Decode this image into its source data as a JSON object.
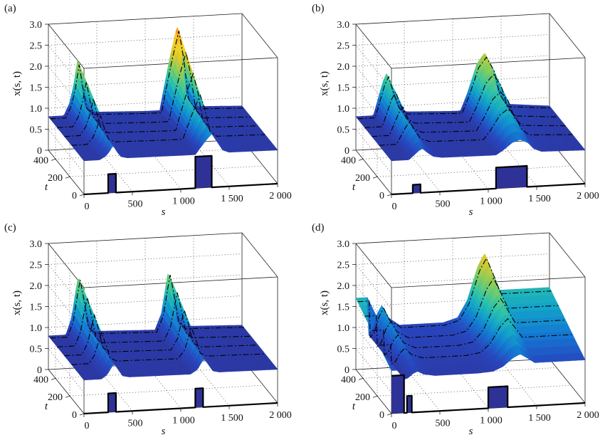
{
  "figure": {
    "panels": [
      {
        "label": "(a)",
        "zlabel": "x(s, t)",
        "xlabel": "s",
        "ylabel": "t",
        "xticks": [
          "0",
          "500",
          "1 000",
          "1 500",
          "2 000"
        ],
        "yticks": [
          "0",
          "200",
          "400"
        ],
        "zticks": [
          "0",
          "0.5",
          "1.0",
          "1.5",
          "2.0",
          "2.5",
          "3.0"
        ]
      },
      {
        "label": "(b)",
        "zlabel": "x(s, t)",
        "xlabel": "s",
        "ylabel": "t",
        "xticks": [
          "0",
          "500",
          "1 000",
          "1 500",
          "2 000"
        ],
        "yticks": [
          "0",
          "200",
          "400"
        ],
        "zticks": [
          "0",
          "0.5",
          "1.0",
          "1.5",
          "2.0",
          "2.5",
          "3.0"
        ]
      },
      {
        "label": "(c)",
        "zlabel": "x(s, t)",
        "xlabel": "s",
        "ylabel": "t",
        "xticks": [
          "0",
          "500",
          "1 000",
          "1 500",
          "2 000"
        ],
        "yticks": [
          "0",
          "200",
          "400"
        ],
        "zticks": [
          "0",
          "0.5",
          "1.0",
          "1.5",
          "2.0",
          "2.5",
          "3.0"
        ]
      },
      {
        "label": "(d)",
        "zlabel": "x(s, t)",
        "xlabel": "s",
        "ylabel": "t",
        "xticks": [
          "0",
          "500",
          "1 000",
          "1 500",
          "2 000"
        ],
        "yticks": [
          "0",
          "200",
          "400"
        ],
        "zticks": [
          "0",
          "0.5",
          "1.0",
          "1.5",
          "2.0",
          "2.5",
          "3.0"
        ]
      }
    ]
  },
  "chart_data": [
    {
      "type": "surface",
      "panel": "(a)",
      "x_range": [
        0,
        2000
      ],
      "t_range": [
        0,
        500
      ],
      "z_range": [
        0,
        3.0
      ],
      "baseline": 0.8,
      "colormap": "parula-to-red",
      "initial_profile": [
        [
          0,
          0.8
        ],
        [
          250,
          0.8
        ],
        [
          250,
          1.25
        ],
        [
          330,
          1.25
        ],
        [
          330,
          0.8
        ],
        [
          1150,
          0.8
        ],
        [
          1150,
          1.55
        ],
        [
          1320,
          1.55
        ],
        [
          1320,
          0.8
        ],
        [
          2000,
          0.8
        ]
      ],
      "surface_profile": [
        [
          0,
          0.8
        ],
        [
          160,
          0.8
        ],
        [
          220,
          1.1
        ],
        [
          260,
          1.5
        ],
        [
          300,
          2.1
        ],
        [
          340,
          1.5
        ],
        [
          380,
          1.0
        ],
        [
          450,
          0.85
        ],
        [
          1000,
          0.8
        ],
        [
          1150,
          0.8
        ],
        [
          1200,
          1.4
        ],
        [
          1260,
          2.1
        ],
        [
          1330,
          2.8
        ],
        [
          1380,
          2.1
        ],
        [
          1430,
          1.1
        ],
        [
          1500,
          0.85
        ],
        [
          2000,
          0.8
        ]
      ],
      "grid": true
    },
    {
      "type": "surface",
      "panel": "(b)",
      "x_range": [
        0,
        2000
      ],
      "t_range": [
        0,
        500
      ],
      "z_range": [
        0,
        3.0
      ],
      "baseline": 0.8,
      "colormap": "parula-to-red",
      "initial_profile": [
        [
          0,
          0.8
        ],
        [
          220,
          0.8
        ],
        [
          220,
          1.0
        ],
        [
          300,
          1.0
        ],
        [
          300,
          0.8
        ],
        [
          1080,
          0.8
        ],
        [
          1080,
          1.3
        ],
        [
          1400,
          1.3
        ],
        [
          1400,
          0.8
        ],
        [
          2000,
          0.8
        ]
      ],
      "surface_profile": [
        [
          0,
          0.8
        ],
        [
          180,
          0.8
        ],
        [
          230,
          1.2
        ],
        [
          280,
          1.6
        ],
        [
          320,
          1.8
        ],
        [
          370,
          1.4
        ],
        [
          430,
          1.0
        ],
        [
          520,
          0.85
        ],
        [
          1000,
          0.8
        ],
        [
          1080,
          0.8
        ],
        [
          1150,
          1.2
        ],
        [
          1250,
          1.9
        ],
        [
          1330,
          2.15
        ],
        [
          1410,
          1.8
        ],
        [
          1470,
          1.2
        ],
        [
          1550,
          0.9
        ],
        [
          2000,
          0.8
        ]
      ],
      "grid": true
    },
    {
      "type": "surface",
      "panel": "(c)",
      "x_range": [
        0,
        2000
      ],
      "t_range": [
        0,
        500
      ],
      "z_range": [
        0,
        3.0
      ],
      "baseline": 0.8,
      "colormap": "parula",
      "initial_profile": [
        [
          0,
          0.8
        ],
        [
          250,
          0.8
        ],
        [
          250,
          1.25
        ],
        [
          330,
          1.25
        ],
        [
          330,
          0.8
        ],
        [
          1150,
          0.8
        ],
        [
          1150,
          1.25
        ],
        [
          1230,
          1.25
        ],
        [
          1230,
          0.8
        ],
        [
          2000,
          0.8
        ]
      ],
      "surface_profile": [
        [
          0,
          0.8
        ],
        [
          180,
          0.8
        ],
        [
          240,
          1.2
        ],
        [
          280,
          1.8
        ],
        [
          310,
          2.2
        ],
        [
          350,
          1.7
        ],
        [
          400,
          1.0
        ],
        [
          470,
          0.85
        ],
        [
          1100,
          0.8
        ],
        [
          1170,
          1.2
        ],
        [
          1210,
          1.8
        ],
        [
          1240,
          2.2
        ],
        [
          1280,
          1.7
        ],
        [
          1330,
          1.0
        ],
        [
          1400,
          0.85
        ],
        [
          2000,
          0.8
        ]
      ],
      "grid": true
    },
    {
      "type": "surface",
      "panel": "(d)",
      "x_range": [
        0,
        2000
      ],
      "t_range": [
        0,
        500
      ],
      "z_range": [
        0,
        3.0
      ],
      "baseline": 0.8,
      "colormap": "parula",
      "initial_profile": [
        [
          0,
          1.7
        ],
        [
          130,
          1.7
        ],
        [
          130,
          0.8
        ],
        [
          160,
          0.8
        ],
        [
          160,
          1.2
        ],
        [
          210,
          1.2
        ],
        [
          210,
          0.8
        ],
        [
          1000,
          0.8
        ],
        [
          1000,
          1.3
        ],
        [
          1200,
          1.3
        ],
        [
          1200,
          0.8
        ],
        [
          2000,
          0.8
        ]
      ],
      "surface_profile": [
        [
          0,
          1.7
        ],
        [
          120,
          1.7
        ],
        [
          130,
          0.8
        ],
        [
          170,
          0.9
        ],
        [
          220,
          1.3
        ],
        [
          270,
          1.5
        ],
        [
          330,
          1.2
        ],
        [
          450,
          1.0
        ],
        [
          900,
          1.0
        ],
        [
          1050,
          1.1
        ],
        [
          1150,
          1.5
        ],
        [
          1260,
          2.3
        ],
        [
          1330,
          2.6
        ],
        [
          1400,
          2.2
        ],
        [
          1480,
          1.7
        ],
        [
          2000,
          1.7
        ]
      ],
      "grid": true
    }
  ]
}
